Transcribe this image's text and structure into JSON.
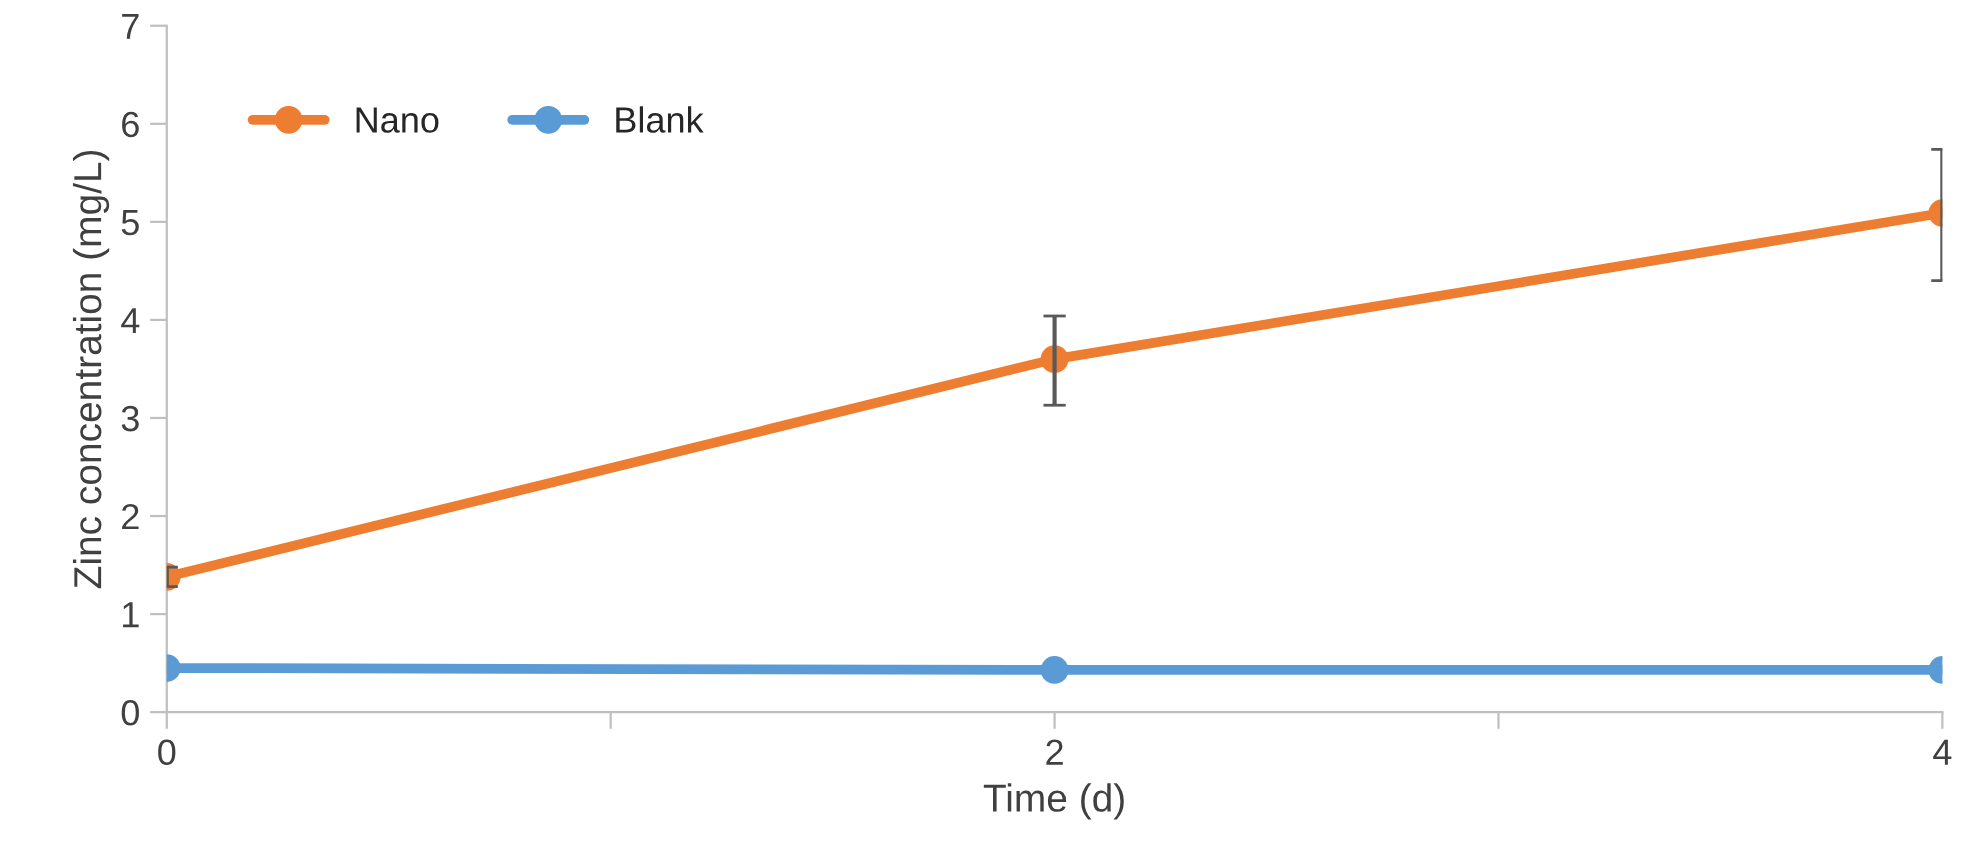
{
  "chart_data": {
    "type": "line",
    "xlabel": "Time (d)",
    "ylabel": "Zinc concentration (mg/L)",
    "x": [
      0,
      2,
      4
    ],
    "series": [
      {
        "name": "Nano",
        "color": "#ed7d31",
        "values": [
          1.38,
          3.6,
          5.09
        ],
        "errors": [
          [
            1.28,
            1.48
          ],
          [
            3.13,
            4.04
          ],
          [
            4.4,
            5.74
          ]
        ]
      },
      {
        "name": "Blank",
        "color": "#5b9bd5",
        "values": [
          0.45,
          0.43,
          0.43
        ]
      }
    ],
    "xlim": [
      0,
      4
    ],
    "xticks": [
      0,
      {
        "value": 1,
        "label": null
      },
      2,
      {
        "value": 3,
        "label": null
      },
      4
    ],
    "ylim": [
      0,
      7
    ],
    "yticks": [
      0,
      1,
      2,
      3,
      4,
      5,
      6,
      7
    ],
    "grid": false,
    "legend": "top left",
    "marker": "circle",
    "line_style": "solid"
  }
}
